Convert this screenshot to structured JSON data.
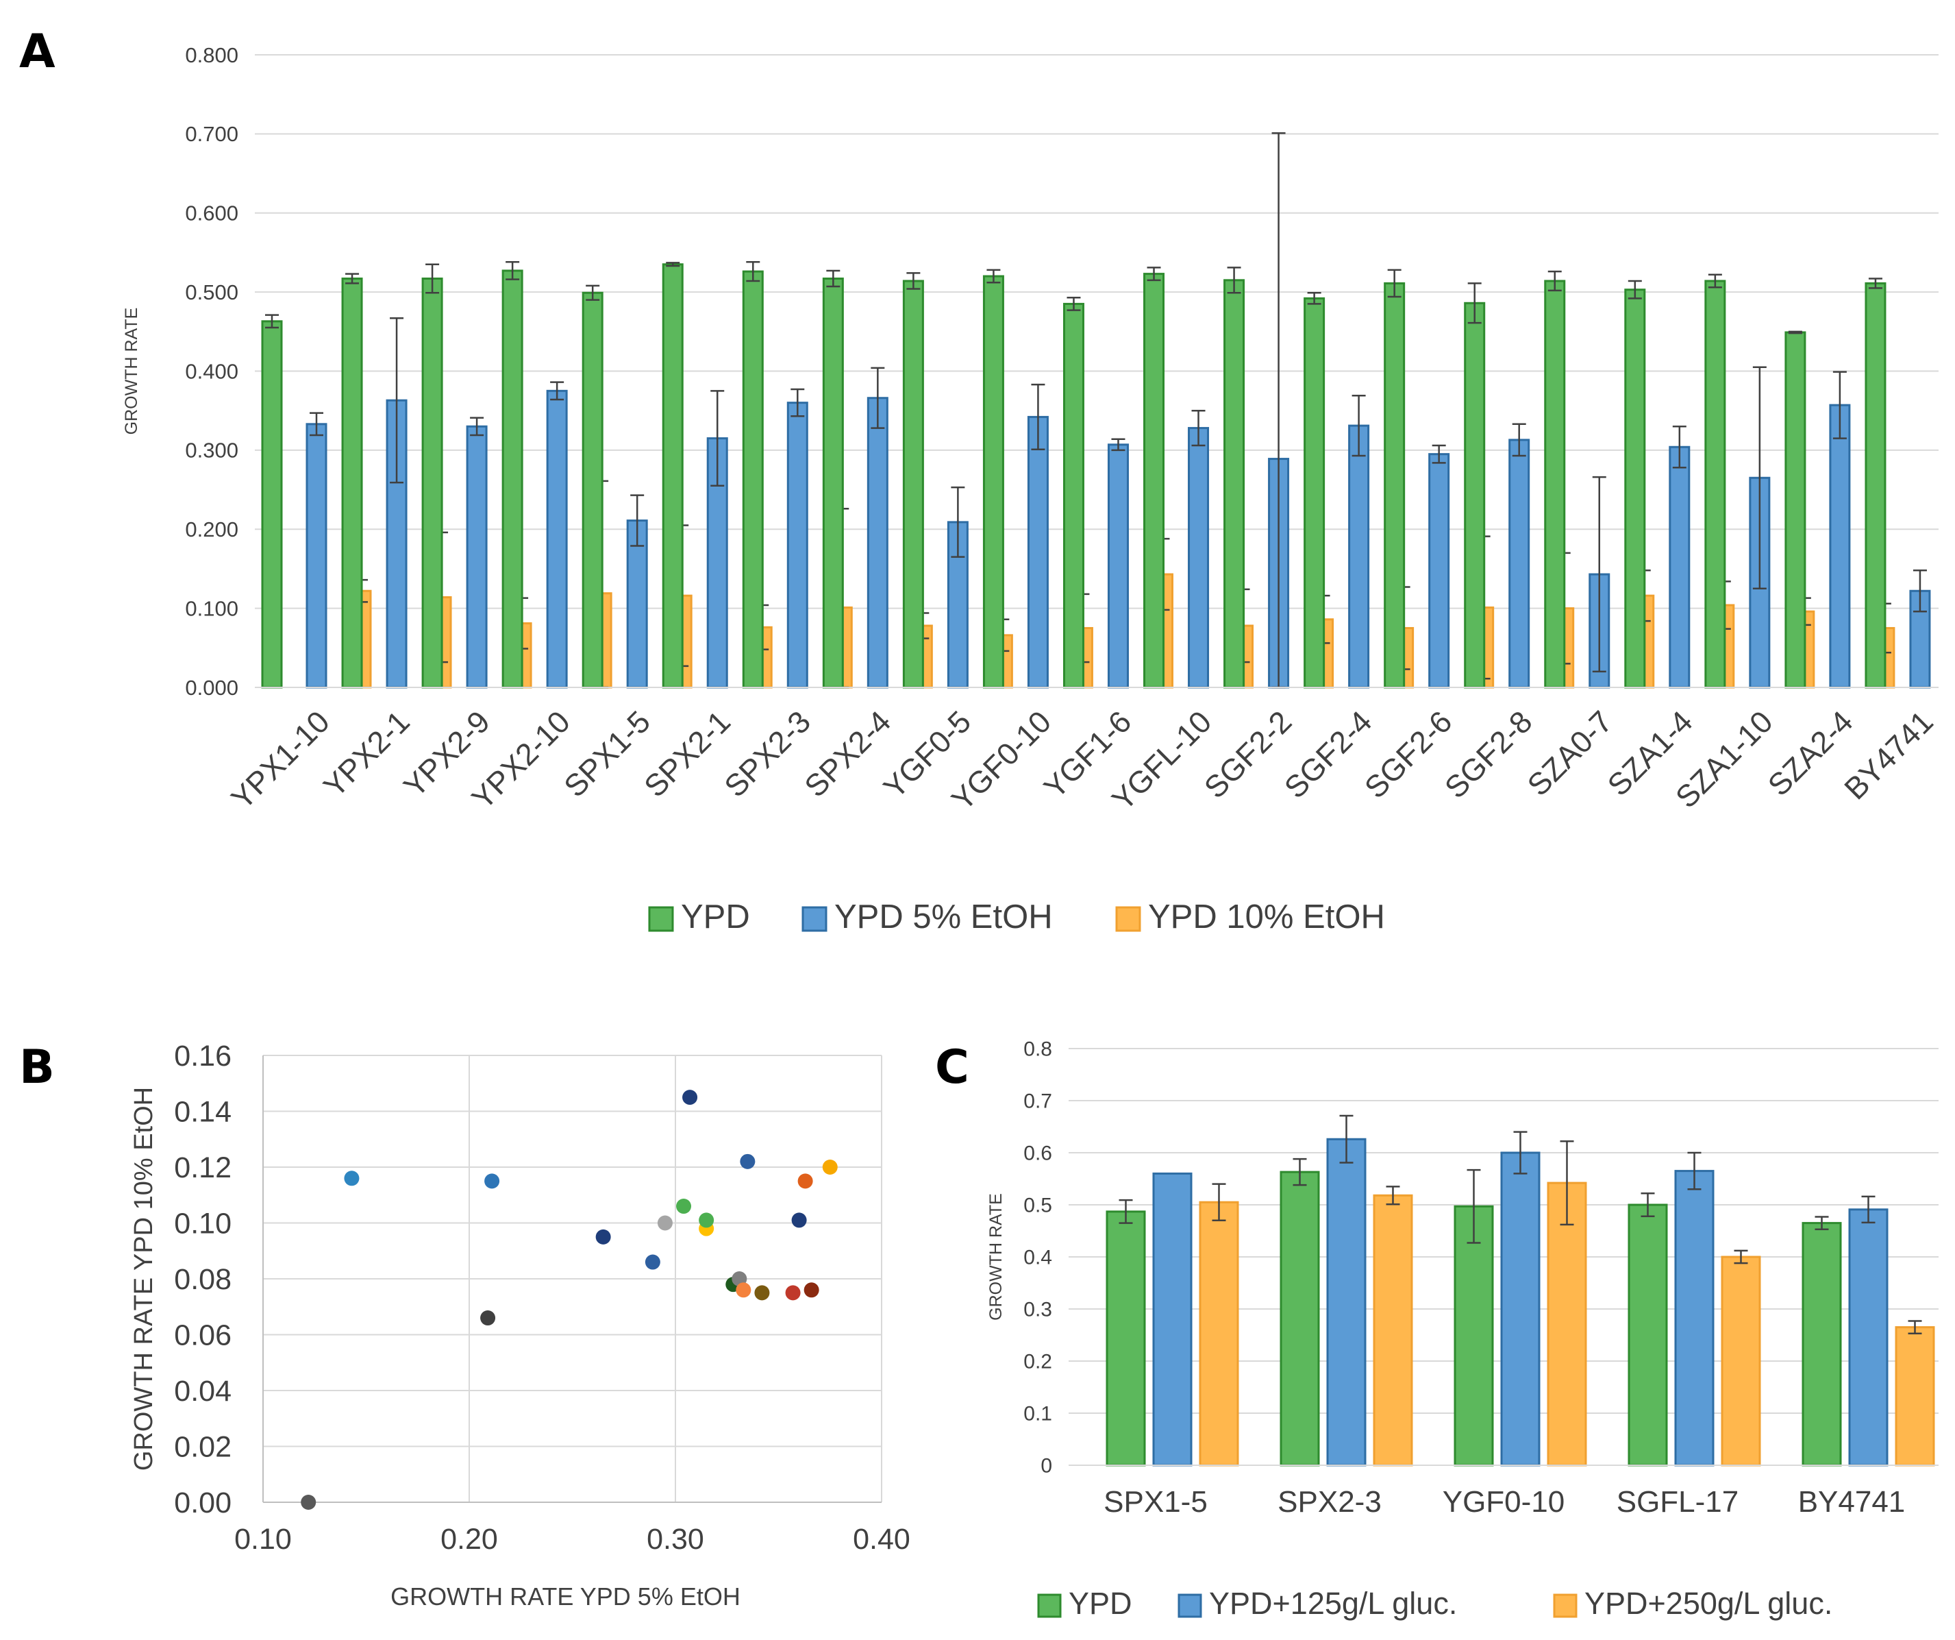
{
  "panels": {
    "a": "A",
    "b": "B",
    "c": "C"
  },
  "colors": {
    "ypd": "#5cb85c",
    "ypd_stroke": "#2e8b2e",
    "blue": "#5b9bd5",
    "blue_stroke": "#2e6da4",
    "orange": "#ffb74d",
    "orange_stroke": "#f0a030",
    "grid": "#d9d9d9",
    "text": "#404040"
  },
  "chart_data": [
    {
      "id": "A",
      "type": "bar",
      "title": "",
      "xlabel": "",
      "ylabel": "GROWTH RATE",
      "ylim": [
        0,
        0.8
      ],
      "yticks": [
        "0.000",
        "0.100",
        "0.200",
        "0.300",
        "0.400",
        "0.500",
        "0.600",
        "0.700",
        "0.800"
      ],
      "legend": "bottom",
      "categories": [
        "YPX1-10",
        "YPX2-1",
        "YPX2-9",
        "YPX2-10",
        "SPX1-5",
        "SPX2-1",
        "SPX2-3",
        "SPX2-4",
        "YGF0-5",
        "YGF0-10",
        "YGF1-6",
        "YGFL-10",
        "SGF2-2",
        "SGF2-4",
        "SGF2-6",
        "SGF2-8",
        "SZA0-7",
        "SZA1-4",
        "SZA1-10",
        "SZA2-4",
        "BY4741"
      ],
      "series": [
        {
          "name": "YPD",
          "values": [
            0.463,
            0.517,
            0.517,
            0.527,
            0.499,
            0.535,
            0.526,
            0.517,
            0.514,
            0.52,
            0.485,
            0.523,
            0.515,
            0.492,
            0.511,
            0.486,
            0.514,
            0.503,
            0.514,
            0.449,
            0.511
          ],
          "errors": [
            0.008,
            0.006,
            0.018,
            0.011,
            0.009,
            0.002,
            0.012,
            0.01,
            0.01,
            0.008,
            0.008,
            0.008,
            0.016,
            0.007,
            0.017,
            0.025,
            0.012,
            0.011,
            0.008,
            0.001,
            0.006
          ]
        },
        {
          "name": "YPD 5% EtOH",
          "values": [
            0.333,
            0.363,
            0.33,
            0.375,
            0.211,
            0.315,
            0.36,
            0.366,
            0.209,
            0.342,
            0.307,
            0.328,
            0.289,
            0.331,
            0.295,
            0.313,
            0.143,
            0.304,
            0.265,
            0.357,
            0.122
          ],
          "errors": [
            0.014,
            0.104,
            0.011,
            0.011,
            0.032,
            0.06,
            0.017,
            0.038,
            0.044,
            0.041,
            0.007,
            0.022,
            0.412,
            0.038,
            0.011,
            0.02,
            0.123,
            0.026,
            0.14,
            0.042,
            0.026
          ]
        },
        {
          "name": "YPD 10% EtOH",
          "values": [
            0.122,
            0.114,
            0.081,
            0.119,
            0.116,
            0.076,
            0.101,
            0.078,
            0.066,
            0.075,
            0.143,
            0.078,
            0.086,
            0.075,
            0.101,
            0.1,
            0.116,
            0.104,
            0.096,
            0.075,
            null
          ],
          "errors": [
            0.014,
            0.082,
            0.032,
            0.142,
            0.089,
            0.028,
            0.125,
            0.016,
            0.02,
            0.043,
            0.045,
            0.046,
            0.03,
            0.052,
            0.09,
            0.07,
            0.032,
            0.03,
            0.017,
            0.031,
            null
          ]
        }
      ]
    },
    {
      "id": "B",
      "type": "scatter",
      "xlabel": "GROWTH RATE YPD 5% EtOH",
      "ylabel": "GROWTH RATE YPD 10% EtOH",
      "xlim": [
        0.1,
        0.4
      ],
      "ylim": [
        0,
        0.16
      ],
      "xticks": [
        "0.10",
        "0.20",
        "0.30",
        "0.40"
      ],
      "yticks": [
        "0.00",
        "0.02",
        "0.04",
        "0.06",
        "0.08",
        "0.10",
        "0.12",
        "0.14",
        "0.16"
      ],
      "points": [
        {
          "x": 0.122,
          "y": 0.0,
          "color": "#595959"
        },
        {
          "x": 0.143,
          "y": 0.116,
          "color": "#2e86c1"
        },
        {
          "x": 0.209,
          "y": 0.066,
          "color": "#404040"
        },
        {
          "x": 0.211,
          "y": 0.115,
          "color": "#2e75b6"
        },
        {
          "x": 0.265,
          "y": 0.095,
          "color": "#1f3d7a"
        },
        {
          "x": 0.289,
          "y": 0.086,
          "color": "#2e5fa0"
        },
        {
          "x": 0.295,
          "y": 0.1,
          "color": "#a5a5a5"
        },
        {
          "x": 0.304,
          "y": 0.106,
          "color": "#4caf50"
        },
        {
          "x": 0.307,
          "y": 0.145,
          "color": "#1f3d7a"
        },
        {
          "x": 0.315,
          "y": 0.098,
          "color": "#ffc000"
        },
        {
          "x": 0.315,
          "y": 0.101,
          "color": "#4caf50"
        },
        {
          "x": 0.328,
          "y": 0.078,
          "color": "#1e5a1e"
        },
        {
          "x": 0.331,
          "y": 0.08,
          "color": "#7f7f7f"
        },
        {
          "x": 0.333,
          "y": 0.076,
          "color": "#f4823c"
        },
        {
          "x": 0.335,
          "y": 0.122,
          "color": "#2e5fa0"
        },
        {
          "x": 0.342,
          "y": 0.075,
          "color": "#7a5a10"
        },
        {
          "x": 0.357,
          "y": 0.075,
          "color": "#c0392b"
        },
        {
          "x": 0.36,
          "y": 0.101,
          "color": "#1f3d7a"
        },
        {
          "x": 0.363,
          "y": 0.115,
          "color": "#e0601b"
        },
        {
          "x": 0.366,
          "y": 0.076,
          "color": "#8b2a10"
        },
        {
          "x": 0.375,
          "y": 0.12,
          "color": "#f7a800"
        }
      ]
    },
    {
      "id": "C",
      "type": "bar",
      "title": "",
      "xlabel": "",
      "ylabel": "GROWTH RATE",
      "ylim": [
        0,
        0.8
      ],
      "yticks": [
        "0",
        "0.1",
        "0.2",
        "0.3",
        "0.4",
        "0.5",
        "0.6",
        "0.7",
        "0.8"
      ],
      "legend": "bottom",
      "categories": [
        "SPX1-5",
        "SPX2-3",
        "YGF0-10",
        "SGFL-17",
        "BY4741"
      ],
      "series": [
        {
          "name": "YPD",
          "values": [
            0.487,
            0.563,
            0.497,
            0.5,
            0.465
          ],
          "errors": [
            0.022,
            0.025,
            0.07,
            0.022,
            0.012
          ]
        },
        {
          "name": "YPD+125g/L gluc.",
          "values": [
            0.56,
            0.626,
            0.6,
            0.565,
            0.491
          ],
          "errors": [
            0.0,
            0.045,
            0.04,
            0.035,
            0.025
          ]
        },
        {
          "name": "YPD+250g/L gluc.",
          "values": [
            0.505,
            0.518,
            0.542,
            0.4,
            0.265
          ],
          "errors": [
            0.035,
            0.017,
            0.08,
            0.012,
            0.012
          ]
        }
      ]
    }
  ]
}
